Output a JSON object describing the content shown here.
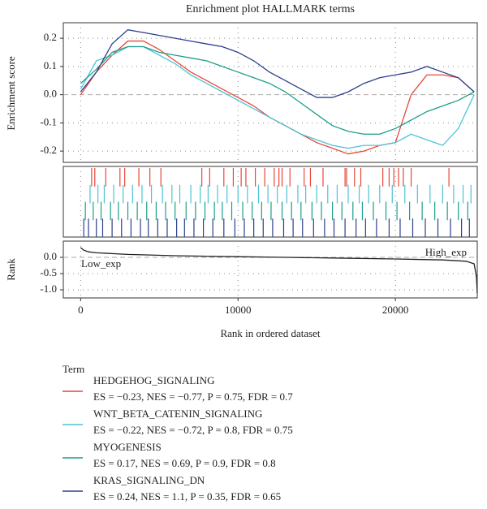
{
  "chart_data": [
    {
      "type": "line",
      "title": "Enrichment plot HALLMARK terms",
      "ylabel": "Enrichment score",
      "xlim": [
        -1100,
        25200
      ],
      "ylim": [
        -0.24,
        0.255
      ],
      "yticks": [
        0.2,
        0.1,
        {
          "value": 0,
          "label": "0.0"
        },
        -0.1,
        -0.2
      ],
      "grid": true,
      "x": [
        0,
        1000,
        2000,
        3000,
        4000,
        5000,
        6000,
        7000,
        8000,
        9000,
        10000,
        11000,
        12000,
        13000,
        14000,
        15000,
        16000,
        17000,
        18000,
        19000,
        20000,
        21000,
        22000,
        23000,
        24000,
        25000
      ],
      "legend_title": "Term",
      "series": [
        {
          "name": "HEDGEHOG_SIGNALING",
          "stats": "ES = −0.23, NES = −0.77, P = 0.75, FDR = 0.7",
          "color": "#e8473a",
          "values": [
            0.0,
            0.08,
            0.14,
            0.19,
            0.19,
            0.16,
            0.12,
            0.08,
            0.05,
            0.02,
            -0.01,
            -0.04,
            -0.08,
            -0.11,
            -0.14,
            -0.17,
            -0.19,
            -0.21,
            -0.2,
            -0.18,
            -0.17,
            0.0,
            0.07,
            0.07,
            0.06,
            0.01
          ]
        },
        {
          "name": "WNT_BETA_CATENIN_SIGNALING",
          "stats": "ES = −0.22, NES = −0.72, P = 0.8, FDR = 0.75",
          "color": "#4cc3d6",
          "values": [
            0.02,
            0.12,
            0.14,
            0.17,
            0.17,
            0.14,
            0.11,
            0.07,
            0.04,
            0.01,
            -0.02,
            -0.05,
            -0.08,
            -0.11,
            -0.14,
            -0.16,
            -0.18,
            -0.19,
            -0.18,
            -0.18,
            -0.17,
            -0.14,
            -0.16,
            -0.18,
            -0.12,
            0.0
          ]
        },
        {
          "name": "MYOGENESIS",
          "stats": "ES = 0.17, NES = 0.69, P = 0.9, FDR = 0.8",
          "color": "#1d9e8b",
          "values": [
            0.04,
            0.09,
            0.15,
            0.17,
            0.17,
            0.15,
            0.14,
            0.13,
            0.12,
            0.1,
            0.08,
            0.06,
            0.04,
            0.01,
            -0.03,
            -0.07,
            -0.11,
            -0.13,
            -0.14,
            -0.14,
            -0.12,
            -0.09,
            -0.06,
            -0.04,
            -0.02,
            0.01
          ]
        },
        {
          "name": "KRAS_SIGNALING_DN",
          "stats": "ES = 0.24, NES = 1.1, P = 0.35, FDR = 0.65",
          "color": "#2c3f8e",
          "values": [
            0.01,
            0.08,
            0.18,
            0.23,
            0.22,
            0.21,
            0.2,
            0.19,
            0.18,
            0.17,
            0.15,
            0.12,
            0.08,
            0.05,
            0.02,
            -0.01,
            -0.01,
            0.01,
            0.04,
            0.06,
            0.07,
            0.08,
            0.1,
            0.08,
            0.06,
            0.01
          ]
        }
      ]
    },
    {
      "type": "rug",
      "xlim": [
        -1100,
        25200
      ],
      "grid": true,
      "series": [
        {
          "color": "#e8473a",
          "hits": [
            700,
            900,
            1600,
            2500,
            2800,
            3700,
            4400,
            5100,
            7700,
            8200,
            9100,
            9700,
            10200,
            10500,
            11100,
            11700,
            12300,
            12600,
            12800,
            13300,
            14200,
            14600,
            15400,
            16800,
            16900,
            17400,
            17800,
            19200,
            19600,
            19900,
            20200,
            20500,
            21000,
            23400
          ]
        },
        {
          "color": "#4cc3d6",
          "hits": [
            600,
            1100,
            1500,
            2100,
            2700,
            3300,
            3900,
            4500,
            5200,
            5800,
            6300,
            7000,
            7600,
            8100,
            8700,
            9300,
            10000,
            10600,
            11300,
            11900,
            12500,
            13100,
            13800,
            14300,
            15000,
            15700,
            16300,
            17000,
            17700,
            18300,
            19000,
            19800,
            20600,
            21400,
            22200,
            23000,
            23700,
            24300,
            24800
          ]
        },
        {
          "color": "#1d9e8b",
          "hits": [
            300,
            800,
            1300,
            1900,
            2400,
            3000,
            3600,
            4200,
            4800,
            5400,
            6000,
            6700,
            7300,
            7900,
            8500,
            9000,
            9600,
            10300,
            10900,
            11500,
            12100,
            12800,
            13400,
            14000,
            14700,
            15300,
            16000,
            16600,
            17300,
            17900,
            18600,
            19400,
            20100,
            20900,
            21700,
            22500,
            23300,
            24000,
            24600
          ]
        },
        {
          "color": "#2c3f8e",
          "hits": [
            200,
            500,
            1000,
            1400,
            2000,
            2600,
            3200,
            3800,
            4300,
            4900,
            5500,
            6100,
            6600,
            7200,
            7800,
            8400,
            9100,
            9800,
            10400,
            11000,
            11600,
            12200,
            12900,
            13500,
            14100,
            14800,
            15500,
            16100,
            16800,
            17500,
            18100,
            18800,
            19600,
            20300,
            21100,
            21900,
            22700,
            23500,
            24200,
            24700
          ]
        }
      ]
    },
    {
      "type": "line",
      "ylabel": "Rank",
      "xlabel": "Rank in ordered dataset",
      "xlim": [
        -1100,
        25200
      ],
      "ylim": [
        -1.25,
        0.5
      ],
      "xticks": [
        0,
        10000,
        20000
      ],
      "yticks": [
        {
          "value": 0,
          "label": "0.0"
        },
        -0.5,
        {
          "value": -1,
          "label": "-1.0"
        }
      ],
      "grid": true,
      "annotations": [
        "Low_exp",
        "High_exp"
      ],
      "x": [
        0,
        200,
        500,
        1000,
        3000,
        6000,
        10000,
        13000,
        16000,
        20000,
        23000,
        24500,
        25000,
        25150,
        25200
      ],
      "values": [
        0.3,
        0.22,
        0.17,
        0.14,
        0.09,
        0.05,
        0.02,
        0.0,
        -0.02,
        -0.05,
        -0.08,
        -0.12,
        -0.2,
        -0.6,
        -1.1
      ],
      "color": "#222222"
    }
  ]
}
